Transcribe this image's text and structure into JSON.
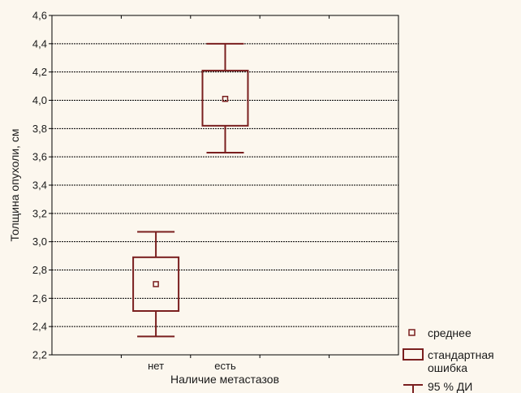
{
  "chart_data": {
    "type": "box",
    "xlabel": "Наличие метастазов",
    "ylabel": "Толщина опухоли, см",
    "ylim": [
      2.2,
      4.6
    ],
    "yticks": [
      "2,2",
      "2,4",
      "2,6",
      "2,8",
      "3,0",
      "3,2",
      "3,4",
      "3,6",
      "3,8",
      "4,0",
      "4,2",
      "4,4",
      "4,6"
    ],
    "categories": [
      "нет",
      "есть"
    ],
    "groups": [
      {
        "category": "нет",
        "mean": 2.7,
        "se_low": 2.51,
        "se_high": 2.89,
        "ci_low": 2.33,
        "ci_high": 3.07
      },
      {
        "category": "есть",
        "mean": 4.01,
        "se_low": 3.82,
        "se_high": 4.21,
        "ci_low": 3.63,
        "ci_high": 4.4
      }
    ],
    "grid": true,
    "legend": {
      "position": "bottom-right",
      "items": [
        {
          "label": "среднее",
          "symbol": "small-square"
        },
        {
          "label": "стандартная ошибка",
          "lines": [
            "стандартная",
            "ошибка"
          ],
          "symbol": "box"
        },
        {
          "label": "95 % ДИ",
          "symbol": "whisker"
        }
      ]
    },
    "colors": {
      "box": "#7a1f1f",
      "grid": "#000000",
      "background": "#fcf7ee"
    }
  }
}
